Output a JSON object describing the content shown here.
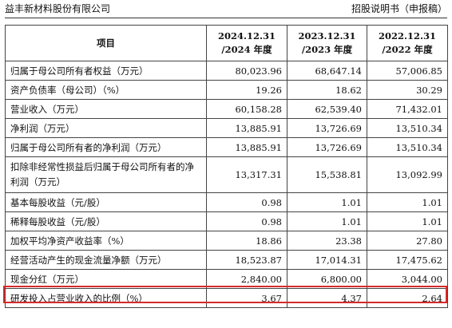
{
  "header": {
    "company": "益丰新材料股份有限公司",
    "doc_title": "招股说明书（申报稿）"
  },
  "table": {
    "headers": [
      "项目",
      "2024.12.31\n/2024 年度",
      "2023.12.31\n/2023 年度",
      "2022.12.31\n/2022 年度"
    ],
    "rows": [
      {
        "label": "归属于母公司所有者权益（万元）",
        "values": [
          "80,023.96",
          "68,647.14",
          "57,006.85"
        ]
      },
      {
        "label": "资产负债率（母公司）（%）",
        "values": [
          "19.26",
          "18.62",
          "30.29"
        ]
      },
      {
        "label": "营业收入（万元）",
        "values": [
          "60,158.28",
          "62,539.40",
          "71,432.01"
        ]
      },
      {
        "label": "净利润（万元）",
        "values": [
          "13,885.91",
          "13,726.69",
          "13,510.34"
        ]
      },
      {
        "label": "归属于母公司所有者的净利润（万元）",
        "values": [
          "13,885.91",
          "13,726.69",
          "13,510.34"
        ]
      },
      {
        "label": "扣除非经常性损益后归属于母公司所有者的净利润（万元）",
        "values": [
          "13,317.31",
          "15,538.81",
          "13,092.99"
        ]
      },
      {
        "label": "基本每股收益（元/股）",
        "values": [
          "0.98",
          "1.01",
          "1.01"
        ]
      },
      {
        "label": "稀释每股收益（元/股）",
        "values": [
          "0.98",
          "1.01",
          "1.01"
        ]
      },
      {
        "label": "加权平均净资产收益率（%）",
        "values": [
          "18.86",
          "23.38",
          "27.80"
        ]
      },
      {
        "label": "经营活动产生的现金流量净额（万元）",
        "values": [
          "18,523.87",
          "17,014.31",
          "17,475.62"
        ]
      },
      {
        "label": "现金分红（万元）",
        "values": [
          "2,840.00",
          "6,800.00",
          "3,044.00"
        ]
      },
      {
        "label": "研发投入占营业收入的比例（%）",
        "values": [
          "3.67",
          "4.37",
          "2.64"
        ]
      }
    ]
  },
  "highlight": {
    "row_label": "现金分红（万元）",
    "color": "#d62b2b"
  }
}
